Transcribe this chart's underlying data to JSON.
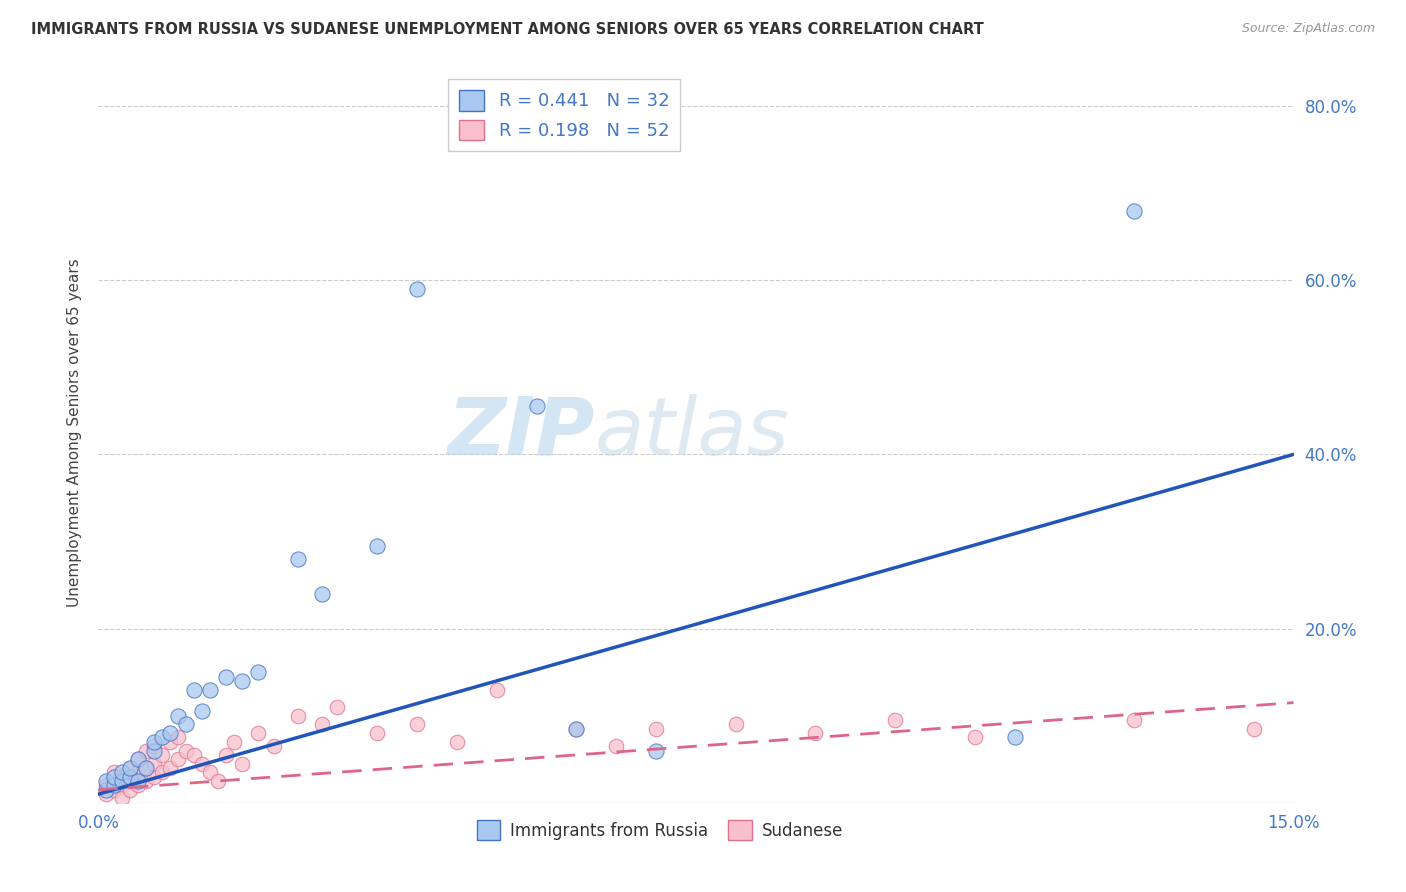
{
  "title": "IMMIGRANTS FROM RUSSIA VS SUDANESE UNEMPLOYMENT AMONG SENIORS OVER 65 YEARS CORRELATION CHART",
  "source": "Source: ZipAtlas.com",
  "ylabel": "Unemployment Among Seniors over 65 years",
  "xlim": [
    0.0,
    0.15
  ],
  "ylim": [
    0.0,
    0.85
  ],
  "xticks": [
    0.0,
    0.05,
    0.1,
    0.15
  ],
  "xticklabels": [
    "0.0%",
    "",
    "",
    "15.0%"
  ],
  "yticks": [
    0.0,
    0.2,
    0.4,
    0.6,
    0.8
  ],
  "yticklabels": [
    "",
    "20.0%",
    "40.0%",
    "60.0%",
    "80.0%"
  ],
  "russia_R": 0.441,
  "russia_N": 32,
  "sudanese_R": 0.198,
  "sudanese_N": 52,
  "russia_color": "#A8C8F0",
  "russia_edge_color": "#4472C4",
  "russia_line_color": "#2255BB",
  "sudanese_color": "#F8C0CC",
  "sudanese_edge_color": "#E07090",
  "sudanese_line_color": "#DD6688",
  "russia_line_x0": 0.0,
  "russia_line_y0": 0.01,
  "russia_line_x1": 0.15,
  "russia_line_y1": 0.4,
  "sudanese_line_x0": 0.0,
  "sudanese_line_y0": 0.015,
  "sudanese_line_x1": 0.15,
  "sudanese_line_y1": 0.115,
  "russia_x": [
    0.001,
    0.001,
    0.002,
    0.002,
    0.003,
    0.003,
    0.004,
    0.004,
    0.005,
    0.005,
    0.006,
    0.007,
    0.007,
    0.008,
    0.009,
    0.01,
    0.011,
    0.012,
    0.013,
    0.014,
    0.016,
    0.018,
    0.02,
    0.025,
    0.028,
    0.035,
    0.04,
    0.055,
    0.06,
    0.07,
    0.115,
    0.13
  ],
  "russia_y": [
    0.015,
    0.025,
    0.02,
    0.03,
    0.025,
    0.035,
    0.03,
    0.04,
    0.025,
    0.05,
    0.04,
    0.06,
    0.07,
    0.075,
    0.08,
    0.1,
    0.09,
    0.13,
    0.105,
    0.13,
    0.145,
    0.14,
    0.15,
    0.28,
    0.24,
    0.295,
    0.59,
    0.455,
    0.085,
    0.06,
    0.075,
    0.68
  ],
  "sudanese_x": [
    0.001,
    0.001,
    0.002,
    0.002,
    0.002,
    0.003,
    0.003,
    0.003,
    0.004,
    0.004,
    0.004,
    0.005,
    0.005,
    0.005,
    0.006,
    0.006,
    0.006,
    0.007,
    0.007,
    0.007,
    0.008,
    0.008,
    0.009,
    0.009,
    0.01,
    0.01,
    0.011,
    0.012,
    0.013,
    0.014,
    0.015,
    0.016,
    0.017,
    0.018,
    0.02,
    0.022,
    0.025,
    0.028,
    0.03,
    0.035,
    0.04,
    0.045,
    0.05,
    0.06,
    0.065,
    0.07,
    0.08,
    0.09,
    0.1,
    0.11,
    0.13,
    0.145
  ],
  "sudanese_y": [
    0.01,
    0.02,
    0.015,
    0.025,
    0.035,
    0.02,
    0.03,
    0.005,
    0.015,
    0.025,
    0.04,
    0.02,
    0.035,
    0.05,
    0.025,
    0.04,
    0.06,
    0.03,
    0.045,
    0.065,
    0.035,
    0.055,
    0.04,
    0.07,
    0.05,
    0.075,
    0.06,
    0.055,
    0.045,
    0.035,
    0.025,
    0.055,
    0.07,
    0.045,
    0.08,
    0.065,
    0.1,
    0.09,
    0.11,
    0.08,
    0.09,
    0.07,
    0.13,
    0.085,
    0.065,
    0.085,
    0.09,
    0.08,
    0.095,
    0.075,
    0.095,
    0.085
  ],
  "watermark_zip": "ZIP",
  "watermark_atlas": "atlas",
  "background_color": "#FFFFFF",
  "grid_color": "#CCCCCC",
  "tick_color": "#4477CC",
  "title_color": "#333333",
  "source_color": "#999999",
  "ylabel_color": "#444444"
}
